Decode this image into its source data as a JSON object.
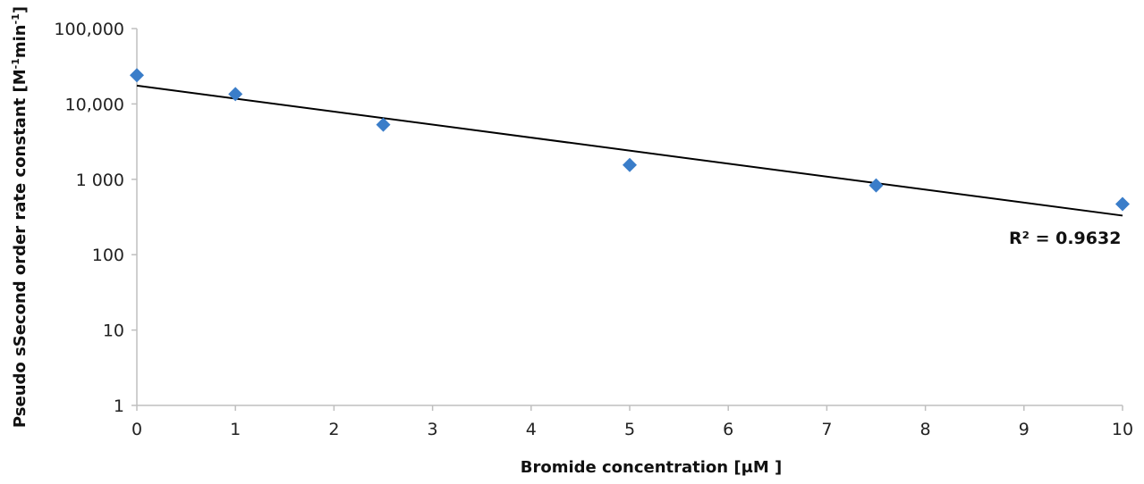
{
  "chart_data": {
    "type": "scatter",
    "xlabel": "Bromide concentration [μM ]",
    "ylabel_parts": {
      "main": "Pseudo sSecond order rate constant [M",
      "sup1": "-1",
      "mid": "min",
      "sup2": "-1",
      "end": "]"
    },
    "x_ticks": [
      0,
      1,
      2,
      3,
      4,
      5,
      6,
      7,
      8,
      9,
      10
    ],
    "x_tick_labels": [
      "0",
      "1",
      "2",
      "3",
      "4",
      "5",
      "6",
      "7",
      "8",
      "9",
      "10"
    ],
    "xlim": [
      0,
      10
    ],
    "y_scale": "log",
    "ylim": [
      1,
      100000
    ],
    "y_ticks": [
      1,
      10,
      100,
      1000,
      10000,
      100000
    ],
    "y_tick_labels": [
      "1",
      "10",
      "100",
      "1 000",
      "10,000",
      "100,000"
    ],
    "grid": false,
    "series": [
      {
        "color": "#3a7dc9",
        "marker": "diamond",
        "points": [
          {
            "x": 0,
            "y": 24000
          },
          {
            "x": 1,
            "y": 13500
          },
          {
            "x": 2.5,
            "y": 5300
          },
          {
            "x": 5,
            "y": 1550
          },
          {
            "x": 7.5,
            "y": 830
          },
          {
            "x": 10,
            "y": 470
          }
        ]
      }
    ],
    "trendline": {
      "type": "exponential",
      "color": "#000000",
      "y_at_xmin": 17500,
      "y_at_xmax": 330,
      "annotation": "R² = 0.9632"
    }
  }
}
